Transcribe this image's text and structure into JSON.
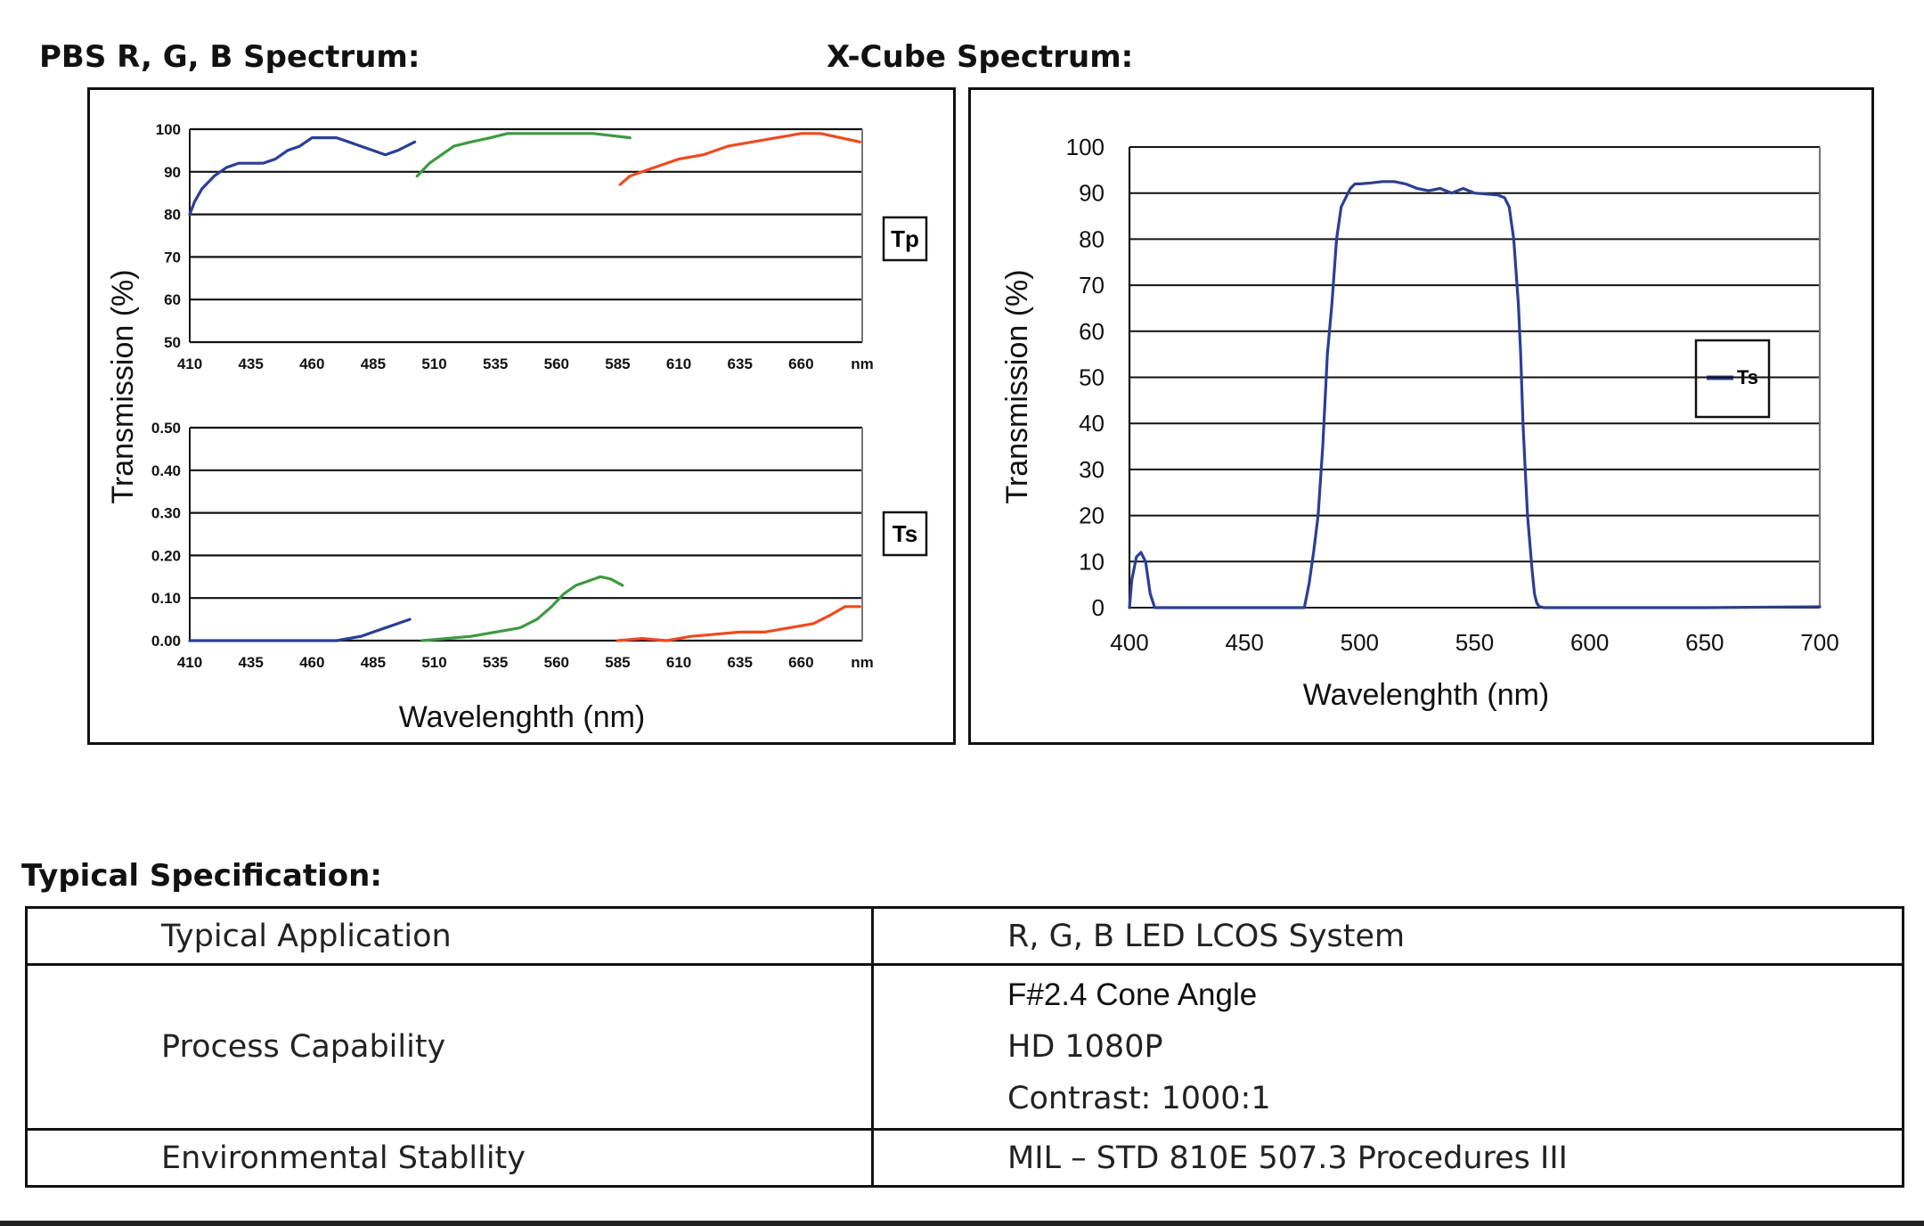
{
  "headings": {
    "pbs": "PBS R, G, B Spectrum:",
    "xcube": "X-Cube Spectrum:",
    "spec": "Typical Specification:"
  },
  "colors": {
    "blue": "#2a3f94",
    "green": "#3d9a3f",
    "red": "#ef4a1f"
  },
  "chart_data": [
    {
      "type": "line",
      "name": "PBS Tp",
      "legend": "Tp",
      "legend_position": "right",
      "xticks": [
        "410",
        "435",
        "460",
        "485",
        "510",
        "535",
        "560",
        "585",
        "610",
        "635",
        "660",
        "nm"
      ],
      "yticks": [
        "100",
        "90",
        "80",
        "70",
        "60",
        "50"
      ],
      "xlim": [
        410,
        685
      ],
      "ylim": [
        50,
        100
      ],
      "grid": true,
      "ylabel": "Transmission (%)",
      "series": [
        {
          "name": "B",
          "color": "blue",
          "x": [
            410,
            412,
            415,
            420,
            425,
            430,
            440,
            445,
            450,
            455,
            460,
            465,
            470,
            475,
            480,
            485,
            490,
            495,
            502
          ],
          "y": [
            80,
            83,
            86,
            89,
            91,
            92,
            92,
            93,
            95,
            96,
            98,
            98,
            98,
            97,
            96,
            95,
            94,
            95,
            97
          ]
        },
        {
          "name": "G",
          "color": "green",
          "x": [
            503,
            508,
            513,
            518,
            525,
            533,
            540,
            550,
            560,
            568,
            575,
            590
          ],
          "y": [
            89,
            92,
            94,
            96,
            97,
            98,
            99,
            99,
            99,
            99,
            99,
            98
          ]
        },
        {
          "name": "R",
          "color": "red",
          "x": [
            586,
            590,
            595,
            600,
            610,
            620,
            630,
            640,
            650,
            660,
            668,
            676,
            684
          ],
          "y": [
            87,
            89,
            90,
            91,
            93,
            94,
            96,
            97,
            98,
            99,
            99,
            98,
            97
          ]
        }
      ]
    },
    {
      "type": "line",
      "name": "PBS Ts",
      "legend": "Ts",
      "legend_position": "right",
      "xlabel": "Wavelenghth (nm)",
      "xticks": [
        "410",
        "435",
        "460",
        "485",
        "510",
        "535",
        "560",
        "585",
        "610",
        "635",
        "660",
        "nm"
      ],
      "yticks": [
        "0.50",
        "0.40",
        "0.30",
        "0.20",
        "0.10",
        "0.00"
      ],
      "xlim": [
        410,
        685
      ],
      "ylim": [
        0,
        0.5
      ],
      "grid": true,
      "series": [
        {
          "name": "B",
          "color": "blue",
          "x": [
            410,
            420,
            430,
            440,
            450,
            460,
            470,
            475,
            480,
            485,
            490,
            495,
            500
          ],
          "y": [
            0.0,
            0.0,
            0.0,
            0.0,
            0.0,
            0.0,
            0.0,
            0.005,
            0.01,
            0.02,
            0.03,
            0.04,
            0.05
          ]
        },
        {
          "name": "G",
          "color": "green",
          "x": [
            505,
            515,
            525,
            535,
            545,
            552,
            558,
            563,
            568,
            573,
            578,
            582,
            587
          ],
          "y": [
            0.0,
            0.005,
            0.01,
            0.02,
            0.03,
            0.05,
            0.08,
            0.11,
            0.13,
            0.14,
            0.15,
            0.145,
            0.13
          ]
        },
        {
          "name": "R",
          "color": "red",
          "x": [
            585,
            595,
            605,
            615,
            625,
            635,
            645,
            655,
            665,
            672,
            678,
            684
          ],
          "y": [
            0.0,
            0.005,
            0.0,
            0.01,
            0.015,
            0.02,
            0.02,
            0.03,
            0.04,
            0.06,
            0.08,
            0.08
          ]
        }
      ]
    },
    {
      "type": "line",
      "name": "X-Cube",
      "legend": "Ts",
      "legend_position": "right",
      "xlabel": "Wavelenghth (nm)",
      "ylabel": "Transmission (%)",
      "xticks": [
        "400",
        "450",
        "500",
        "550",
        "600",
        "650",
        "700"
      ],
      "yticks": [
        "100",
        "90",
        "80",
        "70",
        "60",
        "50",
        "40",
        "30",
        "20",
        "10",
        "0"
      ],
      "xlim": [
        400,
        700
      ],
      "ylim": [
        0,
        100
      ],
      "grid": true,
      "series": [
        {
          "name": "Ts",
          "color": "blue",
          "x": [
            400,
            401,
            403,
            405,
            407,
            409,
            411,
            420,
            450,
            474,
            476,
            478,
            480,
            482,
            484,
            486,
            488,
            490,
            492,
            494,
            496,
            498,
            500,
            505,
            510,
            515,
            520,
            525,
            530,
            535,
            540,
            545,
            550,
            560,
            563,
            565,
            567,
            569,
            570,
            571,
            572,
            573,
            574,
            575,
            576,
            577,
            578,
            580,
            590,
            650,
            700
          ],
          "y": [
            0,
            6,
            11,
            12,
            10,
            3,
            0,
            0,
            0,
            0,
            0,
            5,
            12,
            20,
            35,
            55,
            66,
            80,
            87,
            89,
            91,
            92,
            92,
            92.2,
            92.5,
            92.5,
            92,
            91,
            90.5,
            91,
            90,
            91,
            90,
            89.6,
            89,
            87,
            80,
            66,
            55,
            40,
            30,
            20,
            14,
            8,
            3,
            1,
            0.3,
            0,
            0,
            0,
            0.2
          ]
        }
      ]
    }
  ],
  "spec_table": {
    "rows": [
      {
        "label": "Typical Application",
        "values": [
          "R, G, B LED LCOS System"
        ]
      },
      {
        "label": "Process Capability",
        "values": [
          "F#2.4 Cone Angle",
          "HD 1080P",
          "Contrast: 1000:1"
        ]
      },
      {
        "label": "Environmental Stabllity",
        "values": [
          "MIL – STD 810E 507.3 Procedures III"
        ]
      }
    ]
  }
}
